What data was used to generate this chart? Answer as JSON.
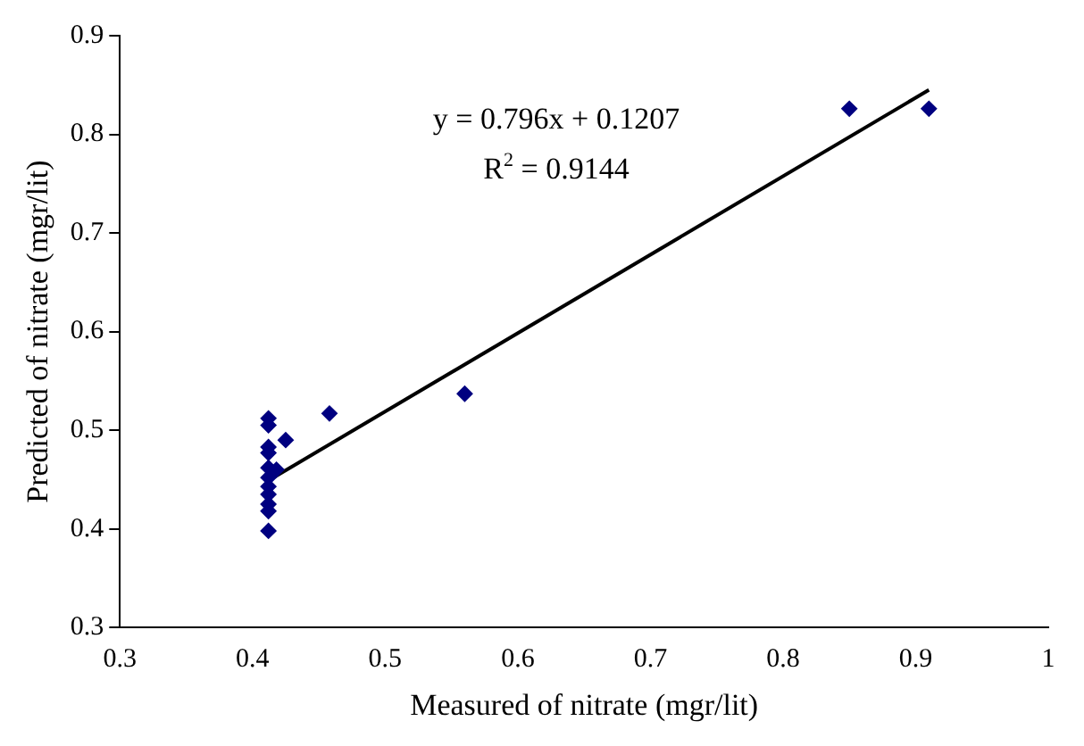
{
  "chart_data": {
    "type": "scatter",
    "xlabel": "Measured of nitrate (mgr/lit)",
    "ylabel": "Predicted of nitrate (mgr/lit)",
    "series": [
      {
        "type": "scatter",
        "marker": "diamond",
        "color": "#000080",
        "x": [
          0.412,
          0.412,
          0.412,
          0.412,
          0.412,
          0.412,
          0.412,
          0.412,
          0.412,
          0.412,
          0.412,
          0.418,
          0.425,
          0.458,
          0.56,
          0.85,
          0.91
        ],
        "values": [
          0.512,
          0.505,
          0.483,
          0.477,
          0.462,
          0.452,
          0.443,
          0.435,
          0.425,
          0.418,
          0.398,
          0.46,
          0.49,
          0.517,
          0.537,
          0.826,
          0.826
        ]
      },
      {
        "type": "line",
        "color": "#000000",
        "x": [
          0.412,
          0.91
        ],
        "values": [
          0.449,
          0.845
        ]
      }
    ],
    "xlim": [
      0.3,
      1
    ],
    "xticks": [
      0.3,
      0.4,
      0.5,
      0.6,
      0.7,
      0.8,
      0.9,
      1
    ],
    "ylim": [
      0.3,
      0.9
    ],
    "yticks": [
      0.3,
      0.4,
      0.5,
      0.6,
      0.7,
      0.8,
      0.9
    ],
    "annotations": [
      "y = 0.796x + 0.1207",
      "R$^{2}$ = 0.9144"
    ],
    "grid": false,
    "legend": false
  }
}
